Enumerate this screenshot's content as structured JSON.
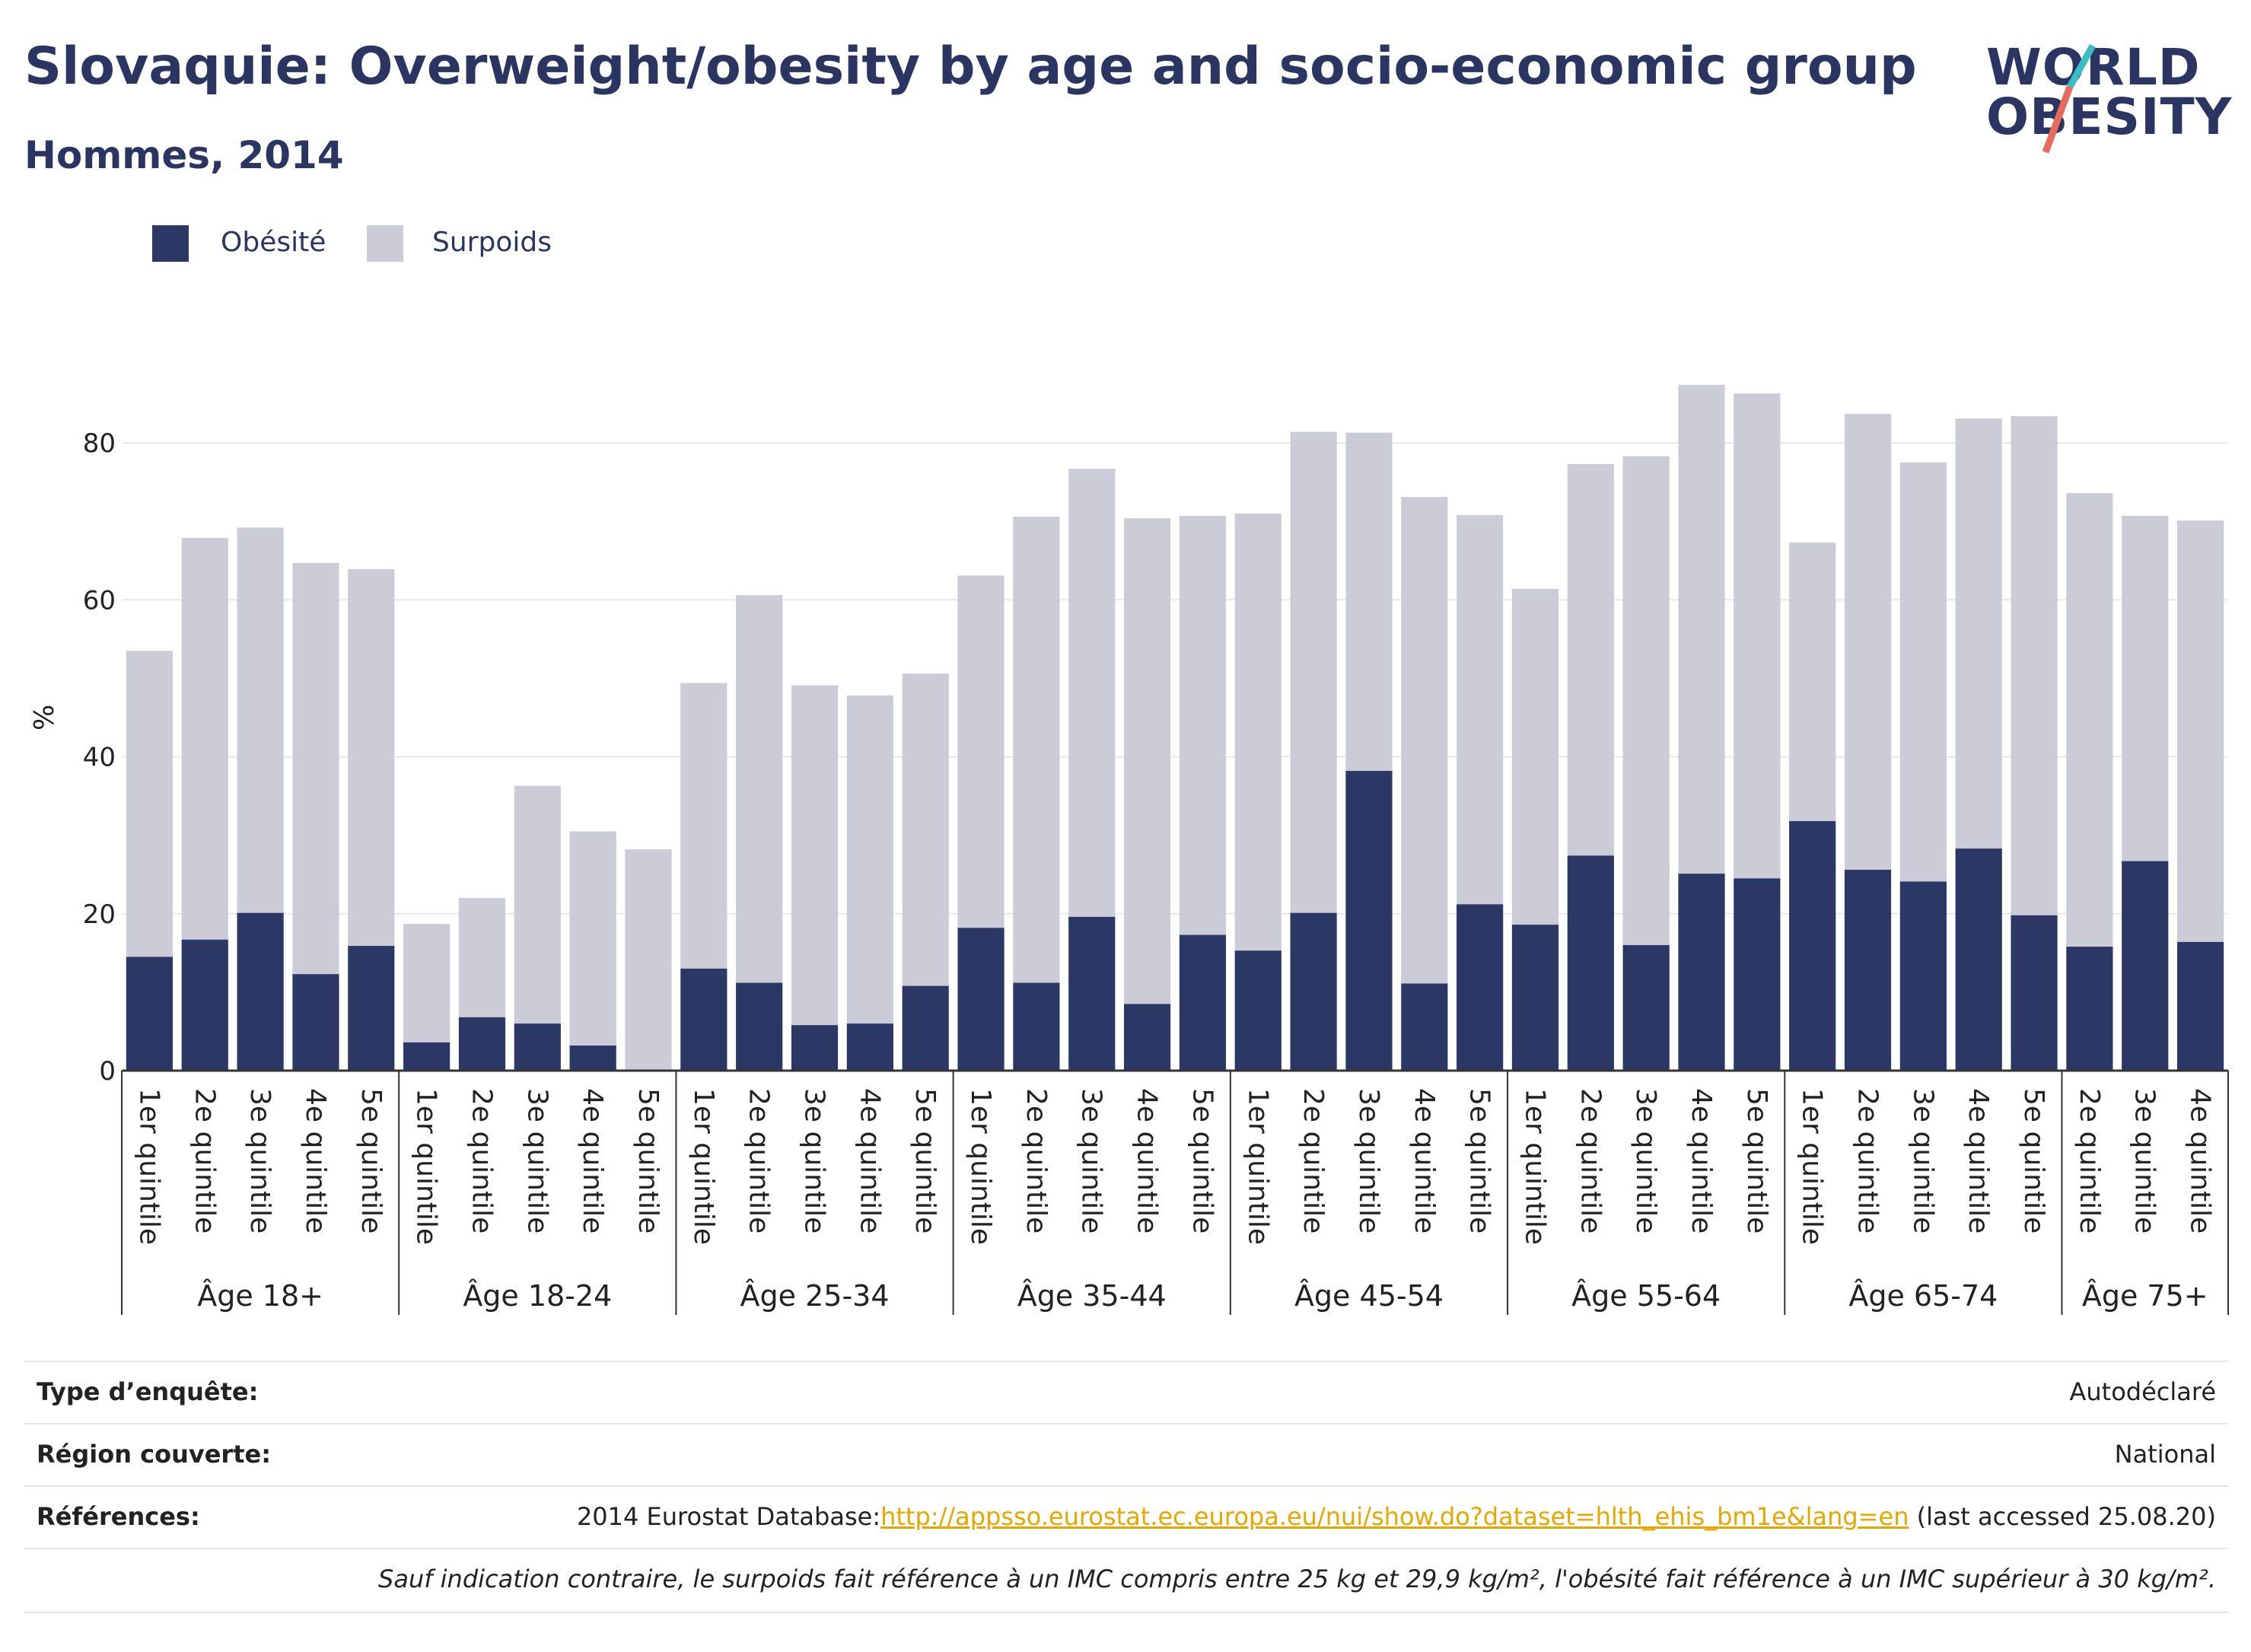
{
  "title": "Slovaquie: Overweight/obesity by age and socio-economic group",
  "subtitle": "Hommes, 2014",
  "logo": {
    "line1": "WORLD",
    "line2": "OBESITY"
  },
  "colors": {
    "obesity": "#2b3764",
    "overweight": "#cbccd8",
    "text": "#2b3562",
    "grid": "#e8e8e8",
    "link": "#e6a800"
  },
  "chart_data": {
    "type": "bar",
    "stacked": true,
    "ylabel": "%",
    "ylim": [
      0,
      90
    ],
    "yticks": [
      0,
      20,
      40,
      60,
      80
    ],
    "grid": true,
    "legend_position": "top-left",
    "series_names": [
      "Obésité",
      "Surpoids"
    ],
    "groups": [
      {
        "label": "Âge 18+",
        "bars": [
          {
            "category": "1er quintile",
            "obesity": 14.5,
            "overweight": 39.0
          },
          {
            "category": "2e quintile",
            "obesity": 16.7,
            "overweight": 51.2
          },
          {
            "category": "3e quintile",
            "obesity": 20.1,
            "overweight": 49.1
          },
          {
            "category": "4e quintile",
            "obesity": 12.3,
            "overweight": 52.4
          },
          {
            "category": "5e quintile",
            "obesity": 15.9,
            "overweight": 48.0
          }
        ]
      },
      {
        "label": "Âge 18-24",
        "bars": [
          {
            "category": "1er quintile",
            "obesity": 3.6,
            "overweight": 15.1
          },
          {
            "category": "2e quintile",
            "obesity": 6.8,
            "overweight": 15.2
          },
          {
            "category": "3e quintile",
            "obesity": 6.0,
            "overweight": 30.3
          },
          {
            "category": "4e quintile",
            "obesity": 3.2,
            "overweight": 27.3
          },
          {
            "category": "5e quintile",
            "obesity": 0.0,
            "overweight": 28.2
          }
        ]
      },
      {
        "label": "Âge 25-34",
        "bars": [
          {
            "category": "1er quintile",
            "obesity": 13.0,
            "overweight": 36.4
          },
          {
            "category": "2e quintile",
            "obesity": 11.2,
            "overweight": 49.4
          },
          {
            "category": "3e quintile",
            "obesity": 5.8,
            "overweight": 43.3
          },
          {
            "category": "4e quintile",
            "obesity": 6.0,
            "overweight": 41.8
          },
          {
            "category": "5e quintile",
            "obesity": 10.8,
            "overweight": 39.8
          }
        ]
      },
      {
        "label": "Âge 35-44",
        "bars": [
          {
            "category": "1er quintile",
            "obesity": 18.2,
            "overweight": 44.9
          },
          {
            "category": "2e quintile",
            "obesity": 11.2,
            "overweight": 59.4
          },
          {
            "category": "3e quintile",
            "obesity": 19.6,
            "overweight": 57.1
          },
          {
            "category": "4e quintile",
            "obesity": 8.5,
            "overweight": 61.9
          },
          {
            "category": "5e quintile",
            "obesity": 17.3,
            "overweight": 53.4
          }
        ]
      },
      {
        "label": "Âge 45-54",
        "bars": [
          {
            "category": "1er quintile",
            "obesity": 15.3,
            "overweight": 55.7
          },
          {
            "category": "2e quintile",
            "obesity": 20.1,
            "overweight": 61.3
          },
          {
            "category": "3e quintile",
            "obesity": 38.2,
            "overweight": 43.1
          },
          {
            "category": "4e quintile",
            "obesity": 11.1,
            "overweight": 62.0
          },
          {
            "category": "5e quintile",
            "obesity": 21.2,
            "overweight": 49.6
          }
        ]
      },
      {
        "label": "Âge 55-64",
        "bars": [
          {
            "category": "1er quintile",
            "obesity": 18.6,
            "overweight": 42.8
          },
          {
            "category": "2e quintile",
            "obesity": 27.4,
            "overweight": 49.9
          },
          {
            "category": "3e quintile",
            "obesity": 16.0,
            "overweight": 62.3
          },
          {
            "category": "4e quintile",
            "obesity": 25.1,
            "overweight": 62.3
          },
          {
            "category": "5e quintile",
            "obesity": 24.5,
            "overweight": 61.8
          }
        ]
      },
      {
        "label": "Âge 65-74",
        "bars": [
          {
            "category": "1er quintile",
            "obesity": 31.8,
            "overweight": 35.5
          },
          {
            "category": "2e quintile",
            "obesity": 25.6,
            "overweight": 58.1
          },
          {
            "category": "3e quintile",
            "obesity": 24.1,
            "overweight": 53.4
          },
          {
            "category": "4e quintile",
            "obesity": 28.3,
            "overweight": 54.8
          },
          {
            "category": "5e quintile",
            "obesity": 19.8,
            "overweight": 63.6
          }
        ]
      },
      {
        "label": "Âge 75+",
        "bars": [
          {
            "category": "2e quintile",
            "obesity": 15.8,
            "overweight": 57.8
          },
          {
            "category": "3e quintile",
            "obesity": 26.7,
            "overweight": 44.0
          },
          {
            "category": "4e quintile",
            "obesity": 16.4,
            "overweight": 53.7
          }
        ]
      }
    ]
  },
  "info": {
    "survey_type_label": "Type d’enquête:",
    "survey_type_value": "Autodéclaré",
    "region_label": "Région couverte:",
    "region_value": "National",
    "references_label": "Références:",
    "references_prefix": "2014 Eurostat Database:",
    "references_link": "http://appsso.eurostat.ec.europa.eu/nui/show.do?dataset=hlth_ehis_bm1e&lang=en",
    "references_suffix": " (last accessed 25.08.20)",
    "note": "Sauf indication contraire, le surpoids fait référence à un IMC compris entre 25 kg et 29,9 kg/m², l'obésité fait référence à un IMC supérieur à 30 kg/m²."
  }
}
